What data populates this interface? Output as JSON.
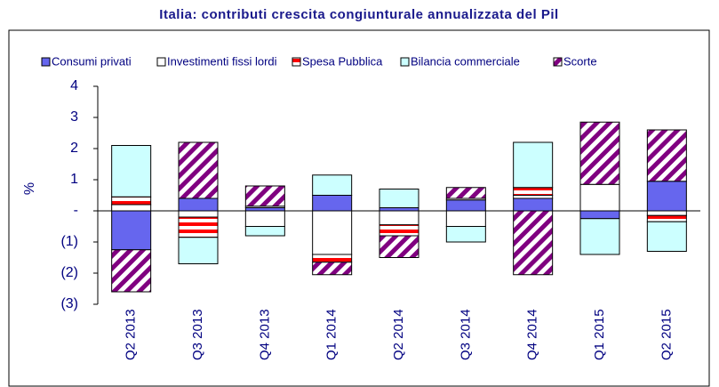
{
  "chart_data": {
    "type": "stacked-bar",
    "title": "Italia: contributi crescita congiunturale annualizzata del Pil",
    "y_label": "%",
    "categories": [
      "Q2 2013",
      "Q3 2013",
      "Q4 2013",
      "Q1 2014",
      "Q2 2014",
      "Q3 2014",
      "Q4 2014",
      "Q1 2015",
      "Q2 2015"
    ],
    "series": [
      {
        "name": "Consumi privati",
        "color": "#6666ee",
        "fill_style": "solid",
        "values": [
          -1.25,
          0.4,
          0.1,
          0.5,
          0.1,
          0.35,
          0.4,
          -0.25,
          0.95
        ]
      },
      {
        "name": "Investimenti fissi lordi",
        "color": "#ffffff",
        "fill_style": "solid",
        "values": [
          0.2,
          -0.2,
          -0.5,
          -1.4,
          -0.45,
          -0.5,
          0.1,
          0.85,
          -0.15
        ]
      },
      {
        "name": "Spesa Pubblica",
        "color": "#ff0000",
        "fill_style": "horizontal-stripes",
        "values": [
          0.25,
          -0.65,
          0.05,
          -0.25,
          -0.35,
          0.05,
          0.25,
          0,
          -0.2
        ]
      },
      {
        "name": "Bilancia commerciale",
        "color": "#ccffff",
        "fill_style": "solid",
        "values": [
          1.65,
          -0.85,
          -0.3,
          0.65,
          0.6,
          -0.5,
          1.45,
          -1.15,
          -0.95
        ]
      },
      {
        "name": "Scorte",
        "color": "#800080",
        "fill_style": "diagonal-hatch",
        "values": [
          -1.35,
          1.8,
          0.65,
          -0.4,
          -0.7,
          0.35,
          -2.05,
          2.0,
          1.65
        ]
      }
    ],
    "ylim": [
      -3,
      4
    ],
    "yticks": [
      {
        "value": -3,
        "label": "(3)"
      },
      {
        "value": -2,
        "label": "(2)"
      },
      {
        "value": -1,
        "label": "(1)"
      },
      {
        "value": 0,
        "label": "-"
      },
      1,
      2,
      3,
      4
    ],
    "legend": "top"
  }
}
